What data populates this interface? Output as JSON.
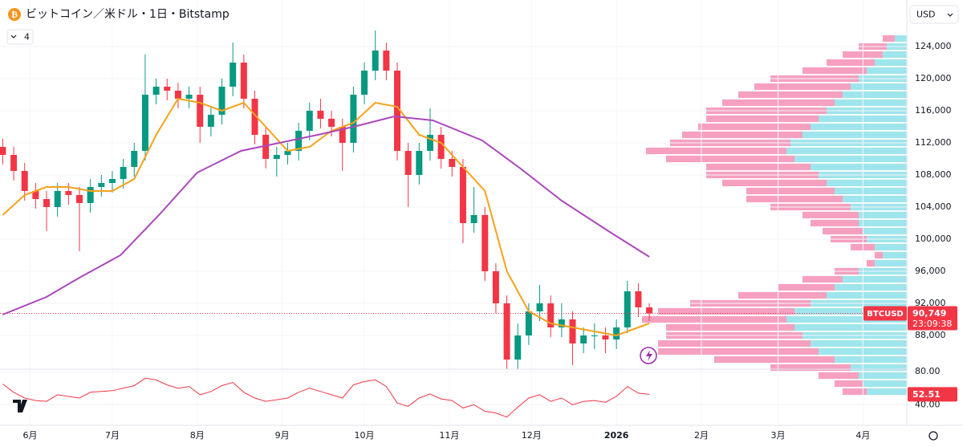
{
  "chart_data": {
    "type": "candlestick",
    "title": "ビットコイン／米ドル・1日・Bitstamp",
    "indicator_count": 4,
    "currency": "USD",
    "symbol": "BTCUSD",
    "last_label": "90,749",
    "countdown": "23:09:38",
    "xlim": [
      -11,
      320
    ],
    "xticks": [
      {
        "value": 0,
        "label": "6月"
      },
      {
        "value": 30,
        "label": "7月"
      },
      {
        "value": 61,
        "label": "8月"
      },
      {
        "value": 92,
        "label": "9月"
      },
      {
        "value": 122,
        "label": "10月"
      },
      {
        "value": 153,
        "label": "11月"
      },
      {
        "value": 183,
        "label": "12月"
      },
      {
        "value": 214,
        "label": "2026"
      },
      {
        "value": 245,
        "label": "2月"
      },
      {
        "value": 273,
        "label": "3月"
      },
      {
        "value": 304,
        "label": "4月"
      }
    ],
    "ylim": [
      84000,
      129800
    ],
    "yticks": [
      {
        "value": 88000,
        "label": "88,000"
      },
      {
        "value": 92000,
        "label": "92,000"
      },
      {
        "value": 96000,
        "label": "96,000"
      },
      {
        "value": 100000,
        "label": "100,000"
      },
      {
        "value": 104000,
        "label": "104,000"
      },
      {
        "value": 108000,
        "label": "108,000"
      },
      {
        "value": 112000,
        "label": "112,000"
      },
      {
        "value": 116000,
        "label": "116,000"
      },
      {
        "value": 120000,
        "label": "120,000"
      },
      {
        "value": 124000,
        "label": "124,000"
      }
    ],
    "grid": true,
    "up_color": "#089981",
    "down_color": "#f23645",
    "candles": {
      "x": [
        -10,
        -6,
        -2,
        2,
        6,
        10,
        14,
        18,
        22,
        26,
        30,
        34,
        38,
        42,
        46,
        50,
        54,
        58,
        62,
        66,
        70,
        74,
        78,
        82,
        86,
        90,
        94,
        98,
        102,
        106,
        110,
        114,
        118,
        122,
        126,
        130,
        134,
        138,
        142,
        146,
        150,
        154,
        158,
        162,
        166,
        170,
        174,
        178,
        182,
        186,
        190,
        194,
        198,
        202,
        206,
        210,
        214,
        218,
        222,
        226
      ],
      "open": [
        111500,
        110500,
        108500,
        106000,
        105000,
        104000,
        106000,
        105500,
        104500,
        106500,
        107000,
        107500,
        109000,
        111000,
        118000,
        119000,
        118500,
        117500,
        118000,
        114000,
        115500,
        119000,
        122000,
        117500,
        113000,
        110000,
        110500,
        111000,
        113500,
        116000,
        115000,
        114000,
        112000,
        118000,
        121000,
        123500,
        121000,
        111000,
        108000,
        111000,
        113000,
        110000,
        109000,
        102000,
        103000,
        96000,
        92000,
        85000,
        88000,
        91000,
        92000,
        89000,
        90000,
        87000,
        88000,
        88000,
        87500,
        89000,
        93500,
        91500
      ],
      "high": [
        112500,
        111500,
        109500,
        107000,
        106000,
        107000,
        107000,
        106500,
        107500,
        108000,
        108500,
        110000,
        112000,
        123000,
        120000,
        120000,
        119500,
        119000,
        119000,
        116500,
        120000,
        124500,
        123000,
        118500,
        114000,
        111500,
        112000,
        114500,
        117000,
        117500,
        116000,
        115000,
        119000,
        122000,
        126000,
        124500,
        122000,
        112000,
        112000,
        116300,
        114000,
        111000,
        110000,
        106500,
        104000,
        97000,
        93000,
        89500,
        92000,
        94300,
        93000,
        92000,
        91000,
        89000,
        89500,
        89000,
        90000,
        94800,
        94500,
        92000
      ],
      "low": [
        109300,
        107300,
        104800,
        103800,
        101000,
        102800,
        104300,
        98500,
        103300,
        105300,
        105800,
        106300,
        107800,
        109800,
        116800,
        117300,
        116300,
        116300,
        112000,
        112800,
        114300,
        117800,
        116300,
        111800,
        108800,
        107800,
        109300,
        109800,
        112300,
        113800,
        112800,
        108500,
        110800,
        116800,
        119800,
        119800,
        109800,
        104000,
        106800,
        109800,
        108800,
        107800,
        99500,
        100800,
        94800,
        90800,
        83800,
        83800,
        86800,
        89800,
        87800,
        87800,
        84300,
        85800,
        86300,
        85800,
        86300,
        88300,
        90300,
        89800
      ],
      "close": [
        110500,
        108500,
        106000,
        105000,
        104000,
        106000,
        105500,
        104500,
        106500,
        107000,
        107500,
        109000,
        111000,
        118000,
        119000,
        118500,
        117500,
        118000,
        114000,
        115500,
        119000,
        122000,
        117500,
        113000,
        110000,
        110500,
        111000,
        113500,
        116000,
        115000,
        114000,
        112000,
        118000,
        121000,
        123500,
        121000,
        111000,
        108000,
        111000,
        113000,
        110000,
        109000,
        102000,
        103000,
        96000,
        92000,
        85000,
        88000,
        91000,
        92000,
        89000,
        90000,
        87000,
        88000,
        88000,
        87500,
        89000,
        93500,
        91500,
        90749
      ]
    },
    "moving_averages": [
      {
        "color": "#f7a21b",
        "x": [
          -10,
          -2,
          6,
          14,
          22,
          30,
          38,
          46,
          54,
          62,
          70,
          78,
          86,
          94,
          102,
          110,
          118,
          126,
          134,
          142,
          150,
          158,
          166,
          174,
          182,
          190,
          198,
          206,
          214,
          222,
          226
        ],
        "values": [
          103000,
          105500,
          106500,
          106500,
          106000,
          106000,
          107500,
          113000,
          117500,
          117000,
          116000,
          117000,
          114000,
          111000,
          111500,
          113500,
          114500,
          117000,
          116500,
          113000,
          112000,
          109000,
          106000,
          96000,
          91000,
          89500,
          89000,
          88500,
          88000,
          89000,
          89500
        ]
      },
      {
        "color": "#ab47bc",
        "x": [
          -10,
          6,
          18,
          33,
          47,
          61,
          77,
          91,
          105,
          118,
          133,
          147,
          165,
          179,
          194,
          212,
          226
        ],
        "values": [
          90600,
          92800,
          95200,
          98000,
          103000,
          108300,
          111000,
          112000,
          113000,
          114000,
          115300,
          114800,
          112300,
          108800,
          104800,
          100800,
          97800
        ]
      }
    ],
    "volume_profile": {
      "up_color": "#8ee0ea",
      "down_color": "#f48fb5",
      "levels": [
        81000,
        82000,
        83000,
        84000,
        85000,
        86000,
        87000,
        88000,
        89000,
        90000,
        91000,
        92000,
        93000,
        94000,
        95000,
        96000,
        97000,
        98000,
        99000,
        100000,
        101000,
        102000,
        103000,
        104000,
        105000,
        106000,
        107000,
        108000,
        109000,
        110000,
        111000,
        112000,
        113000,
        114000,
        115000,
        116000,
        117000,
        118000,
        119000,
        120000,
        121000,
        122000,
        123000,
        124000,
        125000
      ],
      "up": [
        50,
        55,
        60,
        70,
        90,
        110,
        120,
        130,
        140,
        150,
        140,
        120,
        100,
        90,
        80,
        60,
        40,
        30,
        40,
        50,
        55,
        60,
        60,
        70,
        80,
        90,
        100,
        110,
        120,
        140,
        150,
        145,
        130,
        120,
        110,
        100,
        90,
        80,
        70,
        60,
        50,
        40,
        30,
        25,
        15
      ],
      "down": [
        30,
        35,
        50,
        100,
        150,
        200,
        190,
        170,
        160,
        180,
        170,
        150,
        110,
        70,
        50,
        30,
        10,
        10,
        30,
        45,
        50,
        60,
        70,
        100,
        120,
        110,
        130,
        140,
        130,
        160,
        175,
        150,
        150,
        140,
        140,
        150,
        140,
        130,
        120,
        110,
        80,
        60,
        50,
        35,
        15
      ]
    },
    "rsi": {
      "color": "#f23645",
      "ylim": [
        15,
        83
      ],
      "yticks": [
        {
          "value": 80,
          "label": "80.00"
        },
        {
          "value": 40,
          "label": "40.00"
        }
      ],
      "values": [
        65,
        55,
        48,
        45,
        44,
        52,
        50,
        48,
        55,
        56,
        57,
        60,
        63,
        72,
        70,
        64,
        60,
        62,
        52,
        56,
        63,
        67,
        55,
        48,
        44,
        46,
        48,
        55,
        60,
        56,
        52,
        48,
        64,
        68,
        70,
        62,
        42,
        38,
        48,
        53,
        47,
        45,
        36,
        40,
        32,
        30,
        25,
        37,
        48,
        52,
        44,
        48,
        40,
        44,
        45,
        43,
        50,
        62,
        54,
        52.51
      ]
    }
  }
}
